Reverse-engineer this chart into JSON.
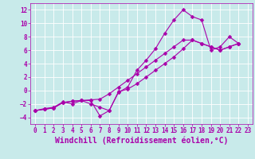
{
  "background_color": "#c8eaea",
  "grid_color": "#ffffff",
  "line_color": "#aa00aa",
  "marker": "D",
  "xlabel": "Windchill (Refroidissement éolien,°C)",
  "xlabel_fontsize": 7,
  "xlim": [
    -0.5,
    23.5
  ],
  "ylim": [
    -5,
    13
  ],
  "xticks": [
    0,
    1,
    2,
    3,
    4,
    5,
    6,
    7,
    8,
    9,
    10,
    11,
    12,
    13,
    14,
    15,
    16,
    17,
    18,
    19,
    20,
    21,
    22,
    23
  ],
  "yticks": [
    -4,
    -2,
    0,
    2,
    4,
    6,
    8,
    10,
    12
  ],
  "series1_x": [
    0,
    1,
    2,
    3,
    4,
    5,
    6,
    7,
    8,
    9,
    10,
    11,
    12,
    13,
    14,
    15,
    16,
    17,
    18,
    19,
    20,
    21,
    22
  ],
  "series1_y": [
    -3,
    -2.7,
    -2.5,
    -1.7,
    -2,
    -1.5,
    -1.5,
    -3.8,
    -3,
    -0.3,
    0.5,
    3,
    4.5,
    6.2,
    8.5,
    10.5,
    12,
    11,
    10.5,
    6,
    6.5,
    8,
    7
  ],
  "series2_x": [
    0,
    1,
    2,
    3,
    4,
    5,
    6,
    7,
    8,
    9,
    10,
    11,
    12,
    13,
    14,
    15,
    16,
    17,
    18,
    19,
    20,
    21,
    22
  ],
  "series2_y": [
    -3,
    -2.8,
    -2.6,
    -1.8,
    -1.6,
    -1.5,
    -1.4,
    -1.3,
    -0.5,
    0.5,
    1.5,
    2.5,
    3.5,
    4.5,
    5.5,
    6.5,
    7.5,
    7.5,
    7,
    6.5,
    6,
    6.5,
    7
  ],
  "series3_x": [
    0,
    1,
    2,
    3,
    4,
    5,
    6,
    7,
    8,
    9,
    10,
    11,
    12,
    13,
    14,
    15,
    16,
    17,
    18,
    19,
    20,
    21,
    22
  ],
  "series3_y": [
    -3,
    -2.8,
    -2.6,
    -1.8,
    -1.6,
    -1.5,
    -2,
    -2.5,
    -3,
    -0.2,
    0.2,
    1,
    2,
    3,
    4,
    5,
    6.2,
    7.5,
    7,
    6.5,
    6,
    6.5,
    7
  ],
  "tick_fontsize": 5.5,
  "tick_color": "#aa00aa",
  "linewidth": 0.8,
  "markersize": 2.5
}
